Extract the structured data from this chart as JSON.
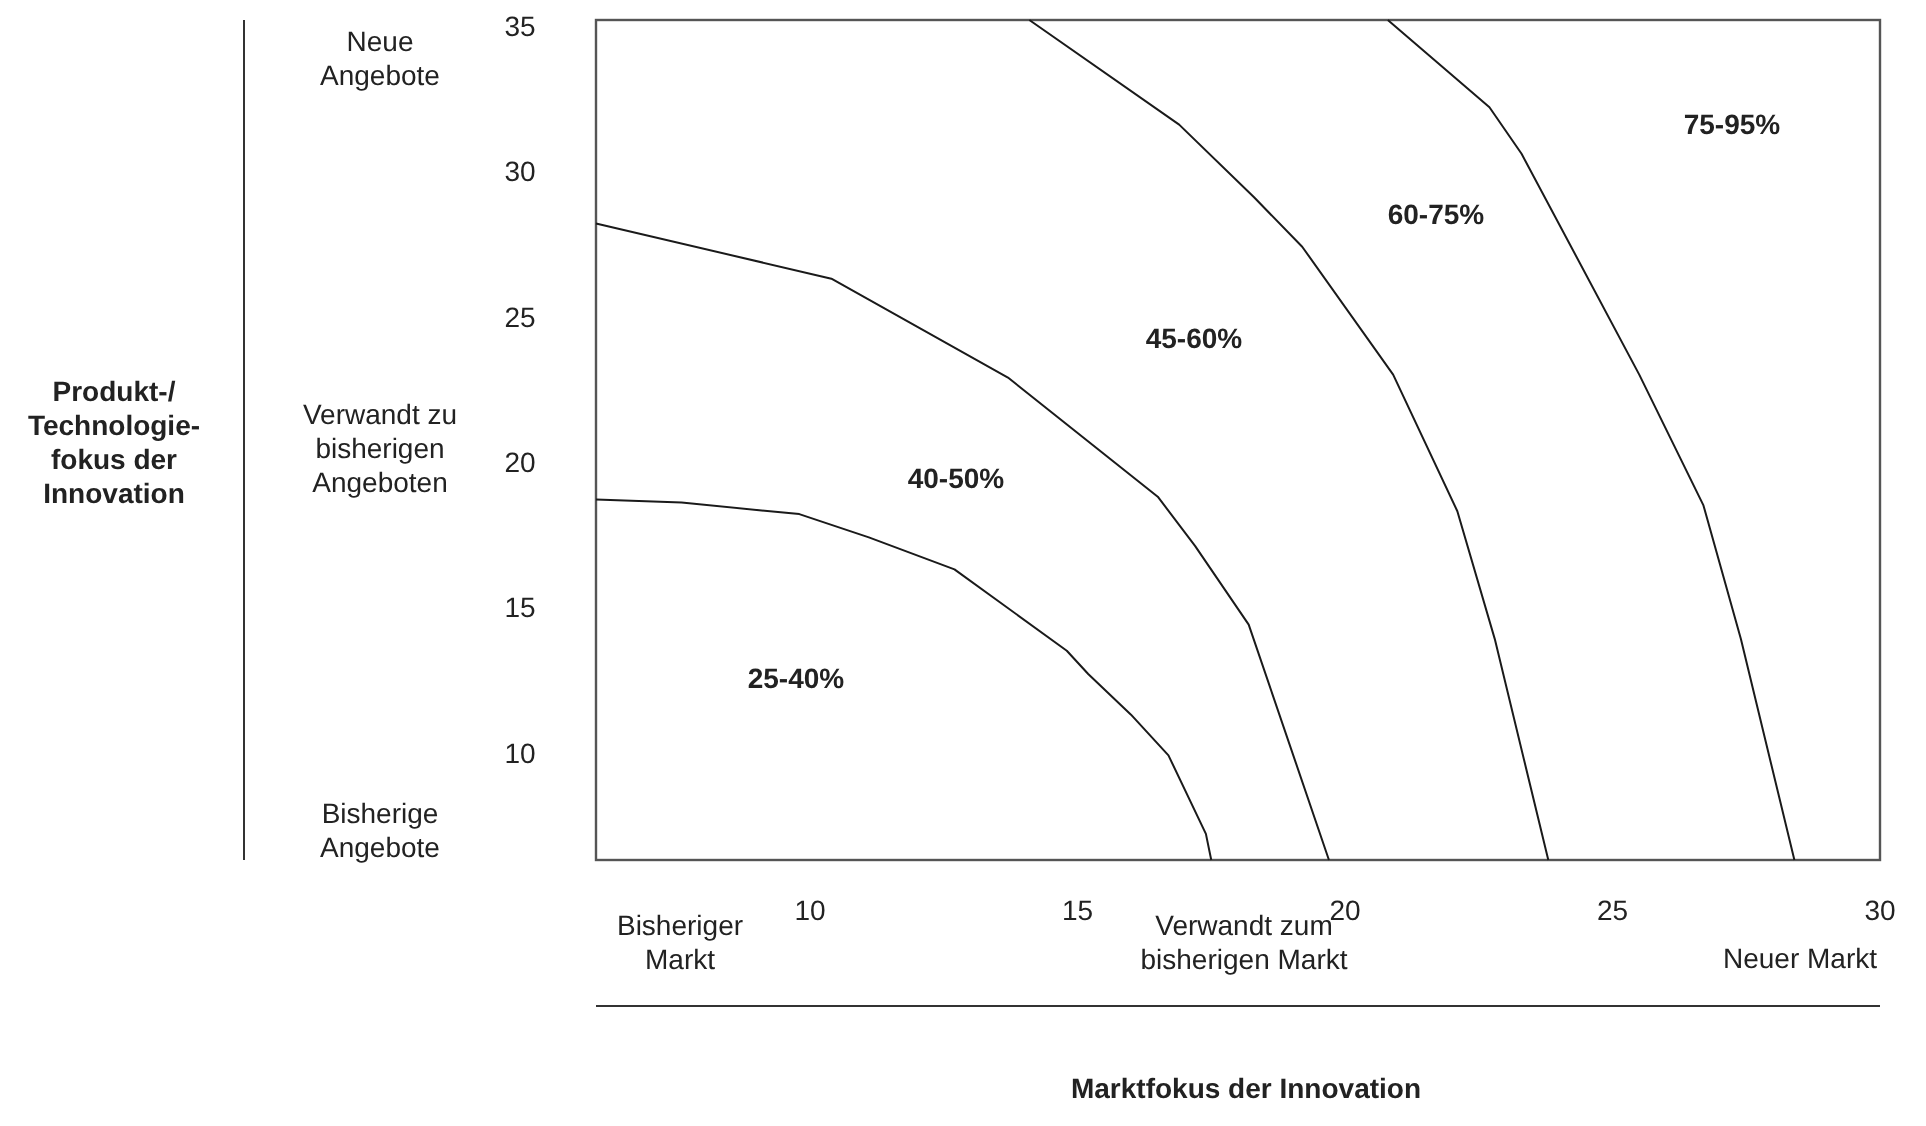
{
  "chart_data": {
    "type": "line",
    "xlim": [
      6,
      30
    ],
    "xticks": [
      10,
      15,
      20,
      25,
      30
    ],
    "ylim": [
      6.4,
      35.3
    ],
    "yticks": [
      10,
      15,
      20,
      25,
      30,
      35
    ],
    "grid": false,
    "marker": "none",
    "line_style": "solid",
    "series": [
      {
        "color": "#1a1a1a",
        "x": [
          6.0,
          7.6,
          9.8,
          11.1,
          12.7,
          14.8,
          15.2,
          16.0,
          16.7,
          17.4,
          17.5
        ],
        "values": [
          18.8,
          18.7,
          18.3,
          17.5,
          16.4,
          13.6,
          12.8,
          11.4,
          10.0,
          7.3,
          6.4
        ]
      },
      {
        "color": "#1a1a1a",
        "x": [
          6.0,
          10.4,
          13.7,
          16.5,
          17.2,
          18.2,
          19.7
        ],
        "values": [
          28.3,
          26.4,
          23.0,
          18.9,
          17.2,
          14.5,
          6.4
        ]
      },
      {
        "color": "#1a1a1a",
        "x": [
          14.1,
          16.9,
          18.3,
          19.2,
          20.9,
          22.1,
          22.8,
          23.8
        ],
        "values": [
          35.3,
          31.7,
          29.2,
          27.5,
          23.1,
          18.4,
          14.0,
          6.4
        ]
      },
      {
        "color": "#1a1a1a",
        "x": [
          20.8,
          22.7,
          23.3,
          25.5,
          26.7,
          27.4,
          28.4
        ],
        "values": [
          35.3,
          32.3,
          30.7,
          23.1,
          18.6,
          14.0,
          6.4
        ]
      }
    ],
    "annotations": [
      "25-40%",
      "40-50%",
      "45-60%",
      "60-75%",
      "75-95%",
      "Neue\nAngebote",
      "Verwandt zu\nbisherigen\nAngeboten",
      "Bisherige\nAngebote",
      "Bisheriger\nMarkt",
      "Verwandt zum\nbisherigen Markt",
      "Neuer Markt",
      "Marktfokus der Innovation",
      "Produkt-/\nTechnologie-\nfokus der\nInnovation"
    ]
  }
}
